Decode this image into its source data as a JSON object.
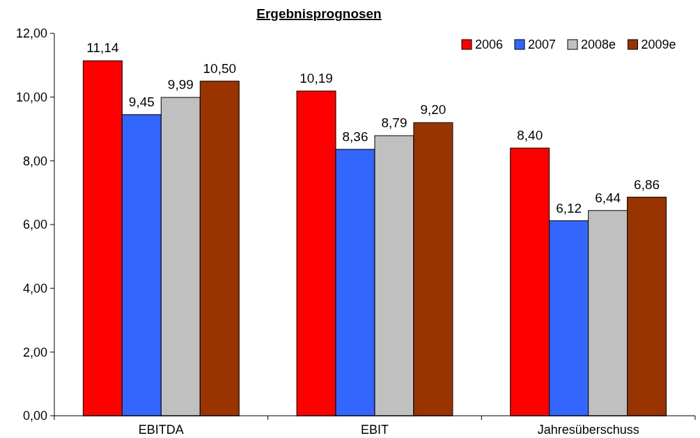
{
  "chart_data": {
    "type": "bar",
    "title": "Ergebnisprognosen",
    "categories": [
      "EBITDA",
      "EBIT",
      "Jahresüberschuss"
    ],
    "series": [
      {
        "name": "2006",
        "color": "#ff0000",
        "values": [
          11.14,
          10.19,
          8.4
        ],
        "value_labels": [
          "11,14",
          "10,19",
          "8,40"
        ]
      },
      {
        "name": "2007",
        "color": "#3366ff",
        "values": [
          9.45,
          8.36,
          6.12
        ],
        "value_labels": [
          "9,45",
          "8,36",
          "6,12"
        ]
      },
      {
        "name": "2008e",
        "color": "#c0c0c0",
        "values": [
          9.99,
          8.79,
          6.44
        ],
        "value_labels": [
          "9,99",
          "8,79",
          "6,44"
        ]
      },
      {
        "name": "2009e",
        "color": "#993300",
        "values": [
          10.5,
          9.2,
          6.86
        ],
        "value_labels": [
          "10,50",
          "9,20",
          "6,86"
        ]
      }
    ],
    "ylim": [
      0,
      12
    ],
    "yticks": [
      {
        "value": 0,
        "label": "0,00"
      },
      {
        "value": 2,
        "label": "2,00"
      },
      {
        "value": 4,
        "label": "4,00"
      },
      {
        "value": 6,
        "label": "6,00"
      },
      {
        "value": 8,
        "label": "8,00"
      },
      {
        "value": 10,
        "label": "10,00"
      },
      {
        "value": 12,
        "label": "12,00"
      }
    ],
    "grid": false,
    "legend": "top right"
  }
}
